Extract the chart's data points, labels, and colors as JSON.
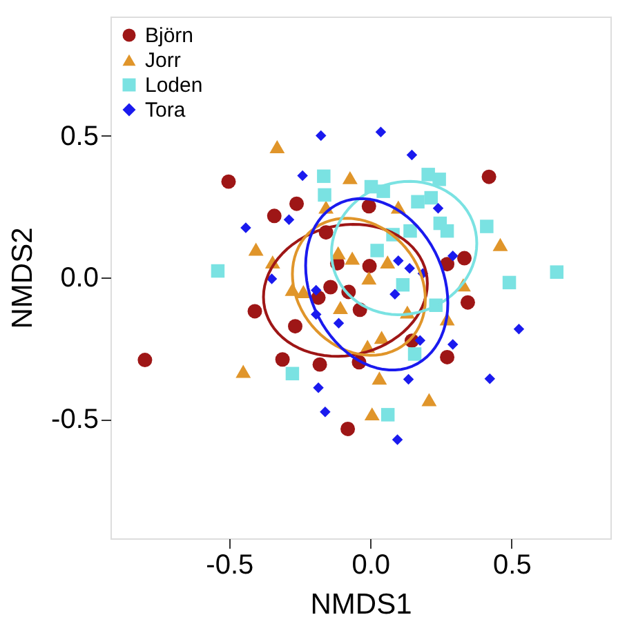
{
  "chart_data": {
    "type": "scatter",
    "xlabel": "NMDS1",
    "ylabel": "NMDS2",
    "xlim": [
      -0.92,
      0.85
    ],
    "ylim": [
      -0.92,
      0.92
    ],
    "xticks": [
      {
        "value": -0.5,
        "label": "-0.5"
      },
      {
        "value": 0,
        "label": "0.0"
      },
      0.5
    ],
    "yticks": [
      {
        "value": -0.5,
        "label": "-0.5"
      },
      {
        "value": 0,
        "label": "0.0"
      },
      0.5
    ],
    "grid": false,
    "legend": "top left",
    "series": [
      {
        "name": "Björn",
        "color": "#9e1616",
        "marker": "circle",
        "x": [
          -0.502,
          -0.261,
          -0.34,
          -0.005,
          -0.157,
          -0.117,
          -0.003,
          -0.141,
          -0.077,
          -0.184,
          -0.409,
          -0.266,
          -0.037,
          -0.311,
          -0.179,
          -0.04,
          -0.798,
          -0.08,
          0.272,
          0.333,
          0.345,
          0.272,
          0.42,
          0.147
        ],
        "values": [
          0.338,
          0.26,
          0.217,
          0.251,
          0.159,
          0.05,
          0.04,
          -0.034,
          -0.051,
          -0.071,
          -0.119,
          -0.172,
          -0.114,
          -0.289,
          -0.307,
          -0.299,
          -0.291,
          -0.534,
          0.047,
          0.068,
          -0.088,
          -0.281,
          0.355,
          -0.223
        ]
      },
      {
        "name": "Jorr",
        "color": "#e0952a",
        "marker": "triangle",
        "x": [
          -0.33,
          -0.072,
          -0.157,
          0.099,
          -0.405,
          -0.346,
          -0.114,
          -0.064,
          0.061,
          -0.005,
          -0.276,
          -0.237,
          -0.106,
          0.131,
          0.329,
          0.272,
          0.46,
          0.04,
          -0.01,
          0.032,
          -0.45,
          0.208,
          0.006
        ],
        "values": [
          0.461,
          0.352,
          0.248,
          0.248,
          0.1,
          0.055,
          0.087,
          0.068,
          0.055,
          -0.002,
          -0.042,
          -0.05,
          -0.106,
          -0.122,
          -0.026,
          -0.146,
          0.116,
          -0.211,
          -0.243,
          -0.355,
          -0.331,
          -0.431,
          -0.481
        ]
      },
      {
        "name": "Loden",
        "color": "#7ae2e2",
        "marker": "square",
        "x": [
          -0.165,
          -0.162,
          0.003,
          0.046,
          0.205,
          0.244,
          0.168,
          0.215,
          0.247,
          0.272,
          0.141,
          0.08,
          0.024,
          0.115,
          0.232,
          0.412,
          0.492,
          0.66,
          -0.54,
          -0.276,
          0.157,
          0.062
        ],
        "values": [
          0.357,
          0.291,
          0.32,
          0.304,
          0.363,
          0.346,
          0.267,
          0.281,
          0.191,
          0.164,
          0.164,
          0.151,
          0.095,
          -0.026,
          -0.098,
          0.18,
          -0.018,
          0.019,
          0.023,
          -0.339,
          -0.27,
          -0.484
        ]
      },
      {
        "name": "Tora",
        "color": "#1a1aee",
        "marker": "diamond",
        "x": [
          -0.175,
          0.037,
          0.147,
          -0.24,
          -0.288,
          -0.441,
          0.24,
          0.292,
          0.099,
          0.139,
          0.186,
          -0.349,
          -0.192,
          0.087,
          -0.192,
          -0.112,
          0.176,
          0.292,
          0.526,
          0.135,
          0.423,
          -0.184,
          -0.16,
          0.096
        ],
        "values": [
          0.5,
          0.513,
          0.432,
          0.359,
          0.204,
          0.175,
          0.244,
          0.076,
          0.059,
          0.032,
          0.014,
          -0.005,
          -0.045,
          -0.059,
          -0.13,
          -0.161,
          -0.222,
          -0.236,
          -0.182,
          -0.359,
          -0.357,
          -0.389,
          -0.474,
          -0.572
        ]
      }
    ]
  }
}
